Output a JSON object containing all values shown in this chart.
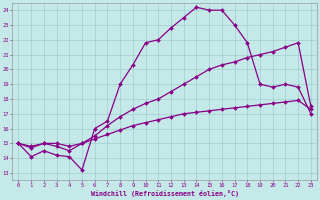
{
  "xlabel": "Windchill (Refroidissement éolien,°C)",
  "bg_color": "#c5e8e8",
  "line_color": "#880088",
  "xlim": [
    -0.5,
    23.5
  ],
  "ylim": [
    12.5,
    24.5
  ],
  "xticks": [
    0,
    1,
    2,
    3,
    4,
    5,
    6,
    7,
    8,
    9,
    10,
    11,
    12,
    13,
    14,
    15,
    16,
    17,
    18,
    19,
    20,
    21,
    22,
    23
  ],
  "yticks": [
    13,
    14,
    15,
    16,
    17,
    18,
    19,
    20,
    21,
    22,
    23,
    24
  ],
  "line1_x": [
    0,
    1,
    2,
    3,
    4,
    5,
    6,
    7,
    8,
    9,
    10,
    11,
    12,
    13,
    14,
    15,
    16,
    17,
    18,
    19,
    20,
    21,
    22,
    23
  ],
  "line1_y": [
    15.0,
    14.1,
    14.5,
    14.2,
    14.1,
    13.2,
    16.0,
    16.5,
    19.0,
    20.3,
    21.8,
    22.0,
    22.8,
    23.5,
    24.2,
    24.0,
    24.0,
    23.0,
    21.8,
    19.0,
    18.8,
    19.0,
    18.8,
    17.0
  ],
  "line2_x": [
    0,
    1,
    2,
    3,
    4,
    5,
    6,
    7,
    8,
    9,
    10,
    11,
    12,
    13,
    14,
    15,
    16,
    17,
    18,
    19,
    20,
    21,
    22,
    23
  ],
  "line2_y": [
    15.0,
    14.7,
    15.0,
    14.8,
    14.5,
    15.0,
    15.5,
    16.2,
    16.8,
    17.3,
    17.7,
    18.0,
    18.5,
    19.0,
    19.5,
    20.0,
    20.3,
    20.5,
    20.8,
    21.0,
    21.2,
    21.5,
    21.8,
    17.5
  ],
  "line3_x": [
    0,
    1,
    2,
    3,
    4,
    5,
    6,
    7,
    8,
    9,
    10,
    11,
    12,
    13,
    14,
    15,
    16,
    17,
    18,
    19,
    20,
    21,
    22,
    23
  ],
  "line3_y": [
    15.0,
    14.8,
    15.0,
    15.0,
    14.8,
    15.0,
    15.3,
    15.6,
    15.9,
    16.2,
    16.4,
    16.6,
    16.8,
    17.0,
    17.1,
    17.2,
    17.3,
    17.4,
    17.5,
    17.6,
    17.7,
    17.8,
    17.9,
    17.3
  ]
}
